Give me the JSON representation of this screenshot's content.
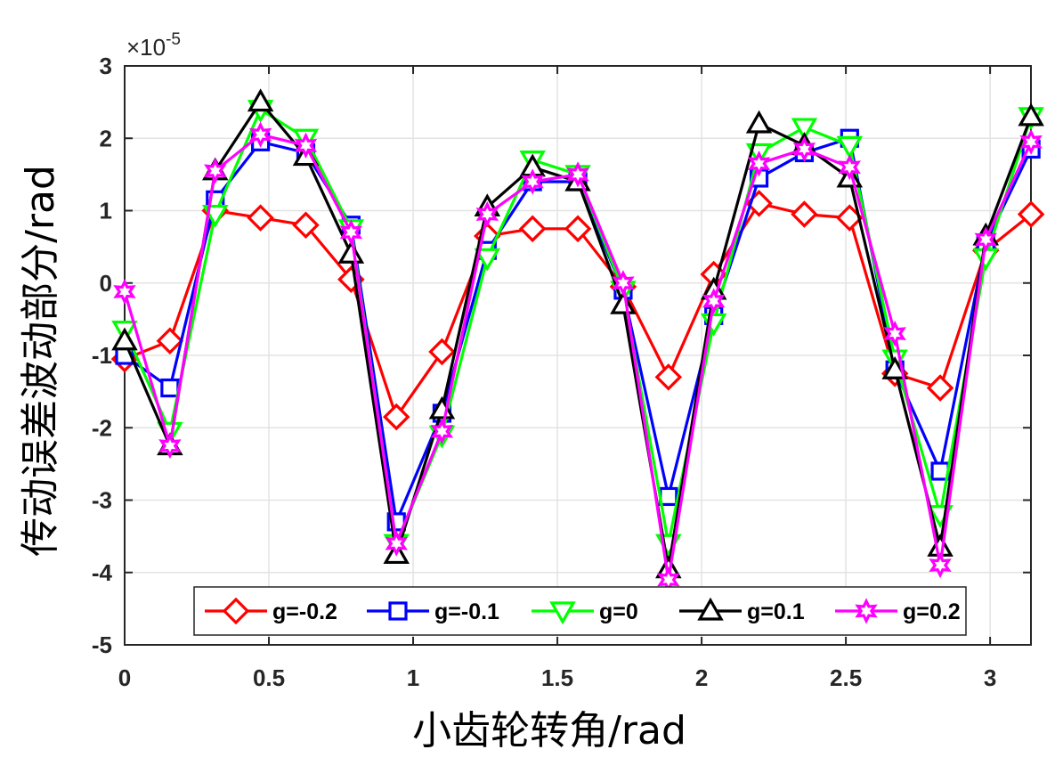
{
  "chart_data": {
    "type": "line",
    "xlabel": "小齿轮转角/rad",
    "ylabel": "传动误差波动部分/rad",
    "y_exponent_base": "×10",
    "y_exponent_power": "-5",
    "xlim": [
      0,
      3.1416
    ],
    "ylim": [
      -5,
      3
    ],
    "xticks": [
      "0",
      "0.5",
      "1",
      "1.5",
      "2",
      "2.5",
      "3"
    ],
    "yticks": [
      "3",
      "2",
      "1",
      "0",
      "-1",
      "-2",
      "-3",
      "-4",
      "-5"
    ],
    "grid": true,
    "legend_position": "bottom-center",
    "x": [
      0,
      0.157,
      0.314,
      0.471,
      0.628,
      0.785,
      0.942,
      1.1,
      1.257,
      1.414,
      1.571,
      1.728,
      1.885,
      2.042,
      2.199,
      2.356,
      2.513,
      2.67,
      2.827,
      2.985,
      3.142
    ],
    "series": [
      {
        "name": "g=-0.2",
        "color": "#ff0000",
        "marker": "diamond",
        "values": [
          -1.05,
          -0.8,
          1.0,
          0.9,
          0.8,
          0.05,
          -1.85,
          -0.95,
          0.65,
          0.75,
          0.75,
          -0.05,
          -1.3,
          0.12,
          1.1,
          0.95,
          0.9,
          -1.25,
          -1.45,
          0.45,
          0.95
        ]
      },
      {
        "name": "g=-0.1",
        "color": "#0000ff",
        "marker": "square",
        "values": [
          -1.0,
          -1.45,
          1.15,
          1.95,
          1.8,
          0.8,
          -3.3,
          -1.8,
          0.45,
          1.4,
          1.4,
          -0.1,
          -2.95,
          -0.45,
          1.45,
          1.8,
          2.0,
          -1.2,
          -2.6,
          0.55,
          1.85
        ]
      },
      {
        "name": "g=0",
        "color": "#00ff00",
        "marker": "triangle-down",
        "values": [
          -0.65,
          -2.05,
          0.95,
          2.4,
          2.0,
          0.75,
          -3.6,
          -2.1,
          0.35,
          1.7,
          1.5,
          -0.1,
          -3.6,
          -0.55,
          1.8,
          2.15,
          1.9,
          -1.05,
          -3.2,
          0.35,
          2.3
        ]
      },
      {
        "name": "g=0.1",
        "color": "#000000",
        "marker": "triangle-up",
        "values": [
          -0.8,
          -2.25,
          1.55,
          2.5,
          1.75,
          0.4,
          -3.75,
          -1.75,
          1.05,
          1.6,
          1.4,
          -0.3,
          -3.95,
          -0.1,
          2.2,
          1.9,
          1.45,
          -1.2,
          -3.65,
          0.65,
          2.3
        ]
      },
      {
        "name": "g=0.2",
        "color": "#ff00ff",
        "marker": "hexagram",
        "values": [
          -0.12,
          -2.25,
          1.55,
          2.05,
          1.9,
          0.7,
          -3.6,
          -2.05,
          0.95,
          1.4,
          1.5,
          0.0,
          -4.1,
          -0.25,
          1.65,
          1.85,
          1.6,
          -0.7,
          -3.9,
          0.6,
          1.95
        ]
      }
    ]
  }
}
